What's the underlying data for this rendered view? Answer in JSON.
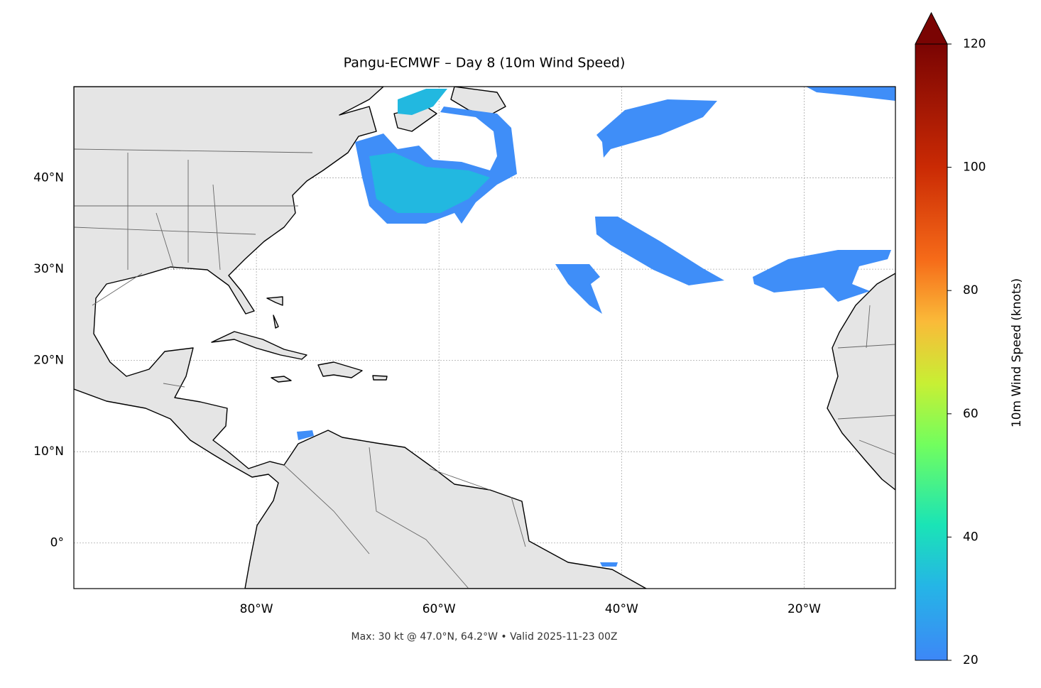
{
  "map": {
    "title": "Pangu-ECMWF – Day 8 (10m Wind Speed)",
    "annotation": "Max: 30 kt @ 47.0°N, 64.2°W • Valid 2025-11-23 00Z",
    "xlim": [
      -100,
      -10
    ],
    "ylim": [
      -5,
      50
    ],
    "xticks": [
      {
        "value": -80,
        "label": "80°W"
      },
      {
        "value": -60,
        "label": "60°W"
      },
      {
        "value": -40,
        "label": "40°W"
      },
      {
        "value": -20,
        "label": "20°W"
      }
    ],
    "yticks": [
      {
        "value": 0,
        "label": "0°"
      },
      {
        "value": 10,
        "label": "10°N"
      },
      {
        "value": 20,
        "label": "20°N"
      },
      {
        "value": 30,
        "label": "30°N"
      },
      {
        "value": 40,
        "label": "40°N"
      }
    ],
    "grid": true,
    "colorbar": {
      "label": "10m Wind Speed (knots)",
      "lim": [
        20,
        120
      ],
      "ticks": [
        20,
        40,
        60,
        80,
        100,
        120
      ]
    }
  }
}
